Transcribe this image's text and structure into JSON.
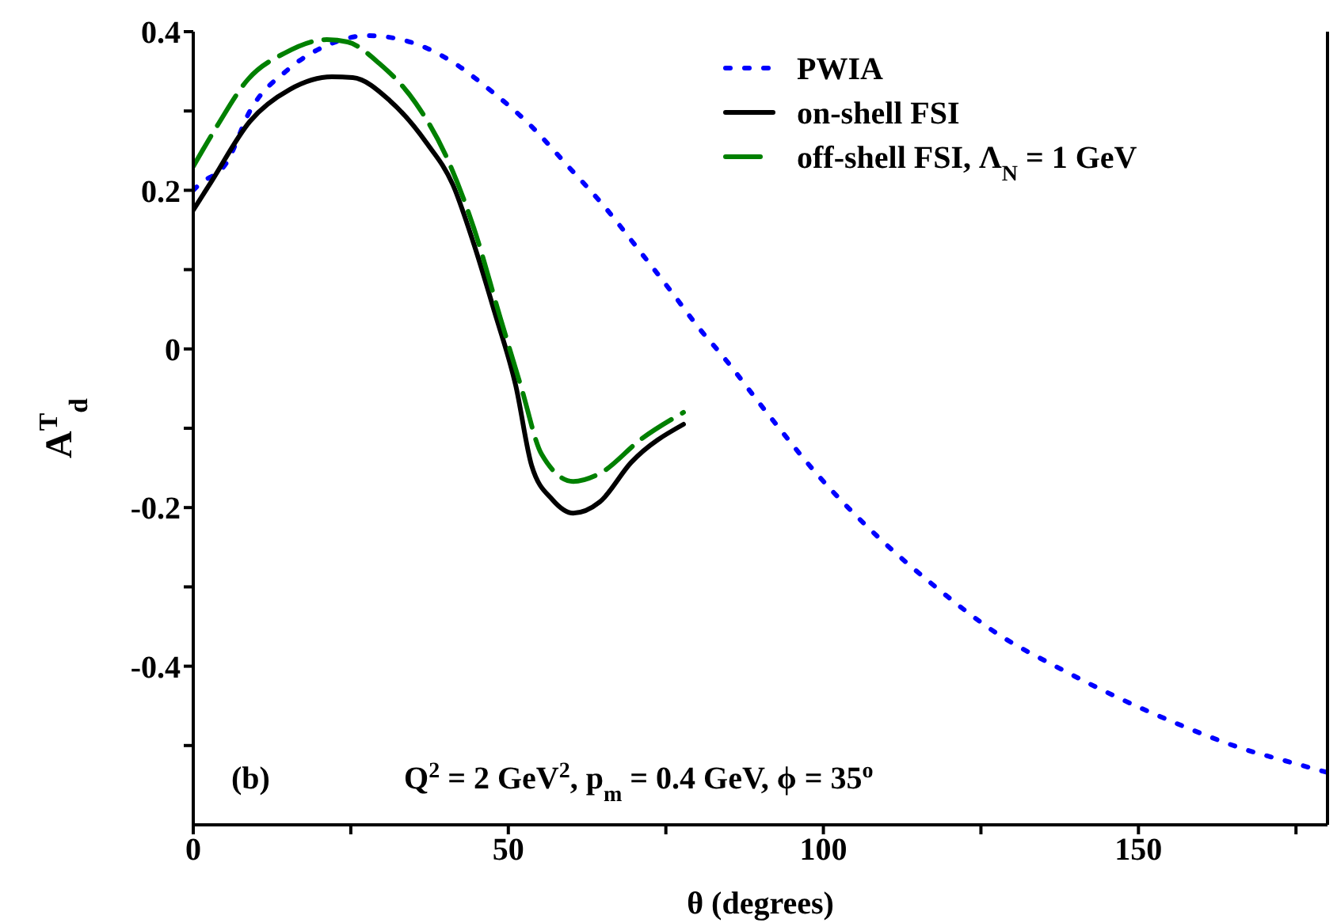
{
  "chart_data": {
    "type": "line",
    "xlabel": "θ   (degrees)",
    "ylabel": "A$^{T}$$_{d}$",
    "xlim": [
      0,
      180
    ],
    "xticks": [
      0,
      {
        "value": 25,
        "label": null
      },
      50,
      {
        "value": 75,
        "label": null
      },
      100,
      {
        "value": 125,
        "label": null
      },
      150,
      {
        "value": 175,
        "label": null
      }
    ],
    "ylim": [
      -0.6,
      0.4
    ],
    "yticks": [
      {
        "value": -0.5,
        "label": null
      },
      -0.4,
      {
        "value": -0.3,
        "label": null
      },
      -0.2,
      {
        "value": -0.1,
        "label": null
      },
      0,
      {
        "value": 0.1,
        "label": null
      },
      0.2,
      {
        "value": 0.3,
        "label": null
      },
      0.4
    ],
    "grid": false,
    "legend": "top right",
    "marker": "none",
    "annotations": [
      "(b)",
      "Q$^{2}$ = 2 GeV$^{2}$, p$_{m}$ = 0.4 GeV,  ϕ  = 35$^{o}$"
    ],
    "series": [
      {
        "name": "PWIA",
        "color": "#0000ff",
        "line_style": "dotted",
        "x": [
          0,
          0.9,
          5.3,
          9,
          15,
          21,
          27.7,
          34,
          40.5,
          47,
          53.5,
          59.4,
          65.3,
          70.5,
          75.6,
          80.8,
          83.5,
          91,
          99,
          108.4,
          117.8,
          127.6,
          137.3,
          146.6,
          156.3,
          165.8,
          175,
          180
        ],
        "values": [
          0.2,
          0.207,
          0.235,
          0.3,
          0.352,
          0.382,
          0.395,
          0.388,
          0.365,
          0.327,
          0.282,
          0.231,
          0.179,
          0.127,
          0.075,
          0.021,
          -0.004,
          -0.08,
          -0.158,
          -0.235,
          -0.3,
          -0.359,
          -0.402,
          -0.439,
          -0.473,
          -0.502,
          -0.523,
          -0.534
        ]
      },
      {
        "name": "on-shell FSI",
        "color": "#000000",
        "line_style": "solid",
        "x": [
          0,
          2.8,
          9,
          15.3,
          22,
          25.3,
          31.2,
          37,
          41.2,
          44.5,
          47.8,
          51.2,
          53.7,
          57,
          60.3,
          64.5,
          69.5,
          77.8
        ],
        "values": [
          0.175,
          0.21,
          0.287,
          0.327,
          0.343,
          0.342,
          0.313,
          0.26,
          0.207,
          0.133,
          0.047,
          -0.047,
          -0.147,
          -0.19,
          -0.207,
          -0.193,
          -0.143,
          -0.095
        ]
      },
      {
        "name": "off-shell FSI,  Λ$_{N}$ = 1 GeV",
        "color": "#008000",
        "line_style": "dashed",
        "x": [
          0,
          3.7,
          8.7,
          14.5,
          21.2,
          24.5,
          29.5,
          35.3,
          40.3,
          44.5,
          48.7,
          52,
          55.3,
          60.3,
          64.5,
          71.2,
          77.8
        ],
        "values": [
          0.23,
          0.28,
          0.34,
          0.373,
          0.39,
          0.387,
          0.36,
          0.31,
          0.24,
          0.153,
          0.04,
          -0.047,
          -0.133,
          -0.167,
          -0.157,
          -0.113,
          -0.08
        ]
      }
    ]
  }
}
